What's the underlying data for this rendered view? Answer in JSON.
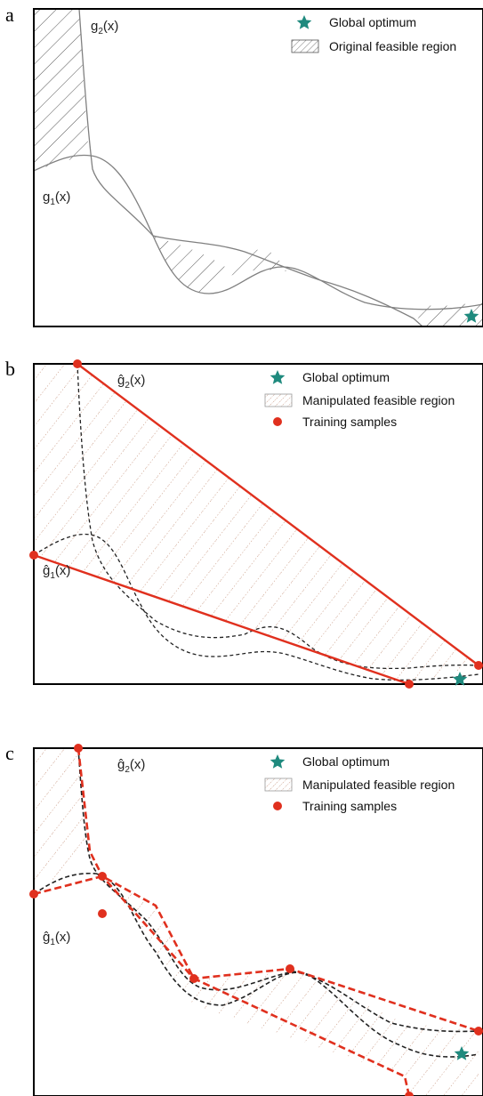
{
  "panels": [
    {
      "letter": "a",
      "curve_labels": {
        "upper_fn": "g",
        "upper_sub": "2",
        "upper_arg": "(x)",
        "lower_fn": "g",
        "lower_sub": "1",
        "lower_arg": "(x)"
      },
      "legend": {
        "optimum": "Global optimum",
        "region": "Original feasible region"
      }
    },
    {
      "letter": "b",
      "curve_labels": {
        "upper_fn": "ĝ",
        "upper_sub": "2",
        "upper_arg": "(x)",
        "lower_fn": "ĝ",
        "lower_sub": "1",
        "lower_arg": "(x)"
      },
      "legend": {
        "optimum": "Global optimum",
        "region": "Manipulated feasible region",
        "samples": "Training samples"
      }
    },
    {
      "letter": "c",
      "curve_labels": {
        "upper_fn": "ĝ",
        "upper_sub": "2",
        "upper_arg": "(x)",
        "lower_fn": "ĝ",
        "lower_sub": "1",
        "lower_arg": "(x)"
      },
      "legend": {
        "optimum": "Global optimum",
        "region": "Manipulated feasible region",
        "samples": "Training samples"
      }
    }
  ],
  "colors": {
    "star": "#1f8a7e",
    "samples": "#e0301e",
    "surrogate_line": "#e0301e",
    "true_curve": "#808080",
    "dashed_curve": "#222222",
    "hatch_original": "#555555",
    "hatch_manipulated": "#c08a70"
  }
}
